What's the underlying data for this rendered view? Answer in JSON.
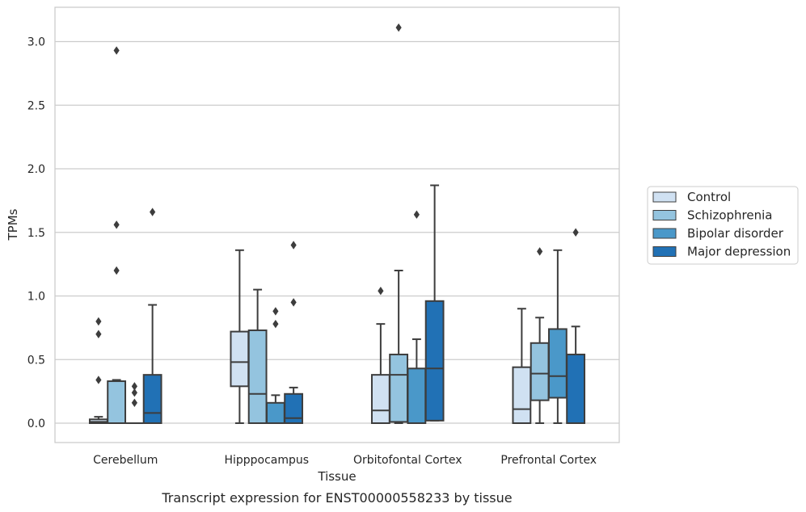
{
  "caption": "Transcript expression for ENST00000558233 by tissue",
  "chart_data": {
    "type": "box",
    "xlabel": "Tissue",
    "ylabel": "TPMs",
    "ylim": [
      -0.15,
      3.27
    ],
    "yticks": [
      0.0,
      0.5,
      1.0,
      1.5,
      2.0,
      2.5,
      3.0
    ],
    "ytick_labels": [
      "0.0",
      "0.5",
      "1.0",
      "1.5",
      "2.0",
      "2.5",
      "3.0"
    ],
    "grid": "horizontal",
    "legend_placement": "right-center",
    "categories": [
      "Cerebellum",
      "Hipppocampus",
      "Orbitofontal Cortex",
      "Prefrontal Cortex"
    ],
    "series": [
      {
        "name": "Control",
        "color": "#d0e1f2",
        "boxes": [
          {
            "whislo": 0.0,
            "q1": 0.0,
            "med": 0.01,
            "q3": 0.03,
            "whishi": 0.05,
            "fliers": [
              0.34,
              0.7,
              0.8
            ]
          },
          {
            "whislo": 0.0,
            "q1": 0.29,
            "med": 0.48,
            "q3": 0.72,
            "whishi": 1.36,
            "fliers": []
          },
          {
            "whislo": 0.0,
            "q1": 0.0,
            "med": 0.1,
            "q3": 0.38,
            "whishi": 0.78,
            "fliers": [
              1.04
            ]
          },
          {
            "whislo": 0.0,
            "q1": 0.0,
            "med": 0.11,
            "q3": 0.44,
            "whishi": 0.9,
            "fliers": []
          }
        ]
      },
      {
        "name": "Schizophrenia",
        "color": "#94c4df",
        "boxes": [
          {
            "whislo": 0.0,
            "q1": 0.0,
            "med": 0.0,
            "q3": 0.33,
            "whishi": 0.34,
            "fliers": [
              1.2,
              1.56,
              2.93
            ]
          },
          {
            "whislo": 0.0,
            "q1": 0.0,
            "med": 0.23,
            "q3": 0.73,
            "whishi": 1.05,
            "fliers": []
          },
          {
            "whislo": 0.0,
            "q1": 0.01,
            "med": 0.38,
            "q3": 0.54,
            "whishi": 1.2,
            "fliers": [
              3.11
            ]
          },
          {
            "whislo": 0.0,
            "q1": 0.18,
            "med": 0.39,
            "q3": 0.63,
            "whishi": 0.83,
            "fliers": [
              1.35
            ]
          }
        ]
      },
      {
        "name": "Bipolar disorder",
        "color": "#4a98c9",
        "boxes": [
          {
            "whislo": 0.0,
            "q1": 0.0,
            "med": 0.0,
            "q3": 0.0,
            "whishi": 0.0,
            "fliers": [
              0.16,
              0.24,
              0.29
            ]
          },
          {
            "whislo": 0.0,
            "q1": 0.0,
            "med": 0.0,
            "q3": 0.16,
            "whishi": 0.22,
            "fliers": [
              0.78,
              0.88
            ]
          },
          {
            "whislo": 0.0,
            "q1": 0.0,
            "med": 0.0,
            "q3": 0.43,
            "whishi": 0.66,
            "fliers": [
              1.64
            ]
          },
          {
            "whislo": 0.0,
            "q1": 0.2,
            "med": 0.37,
            "q3": 0.74,
            "whishi": 1.36,
            "fliers": []
          }
        ]
      },
      {
        "name": "Major depression",
        "color": "#2171b5",
        "boxes": [
          {
            "whislo": 0.0,
            "q1": 0.0,
            "med": 0.08,
            "q3": 0.38,
            "whishi": 0.93,
            "fliers": [
              1.66
            ]
          },
          {
            "whislo": 0.0,
            "q1": 0.0,
            "med": 0.04,
            "q3": 0.23,
            "whishi": 0.28,
            "fliers": [
              0.95,
              1.4
            ]
          },
          {
            "whislo": 0.02,
            "q1": 0.02,
            "med": 0.43,
            "q3": 0.96,
            "whishi": 1.87,
            "fliers": []
          },
          {
            "whislo": 0.0,
            "q1": 0.0,
            "med": 0.0,
            "q3": 0.54,
            "whishi": 0.76,
            "fliers": [
              1.5
            ]
          }
        ]
      }
    ]
  }
}
